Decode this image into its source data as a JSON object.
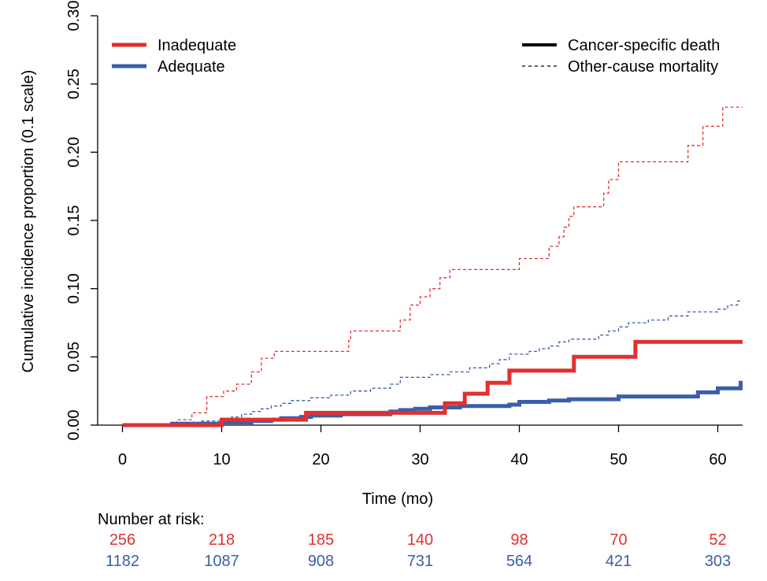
{
  "chart_data": {
    "type": "line",
    "xlabel": "Time (mo)",
    "ylabel": "Cumulative incidence proportion (0.1 scale)",
    "xlim": [
      -2.5,
      62.5
    ],
    "ylim": [
      0,
      0.3
    ],
    "x_ticks": [
      0,
      10,
      20,
      30,
      40,
      50,
      60
    ],
    "y_ticks": [
      0.0,
      0.05,
      0.1,
      0.15,
      0.2,
      0.25,
      0.3
    ],
    "y_tick_labels": [
      "0.00",
      "0.05",
      "0.10",
      "0.15",
      "0.20",
      "0.25",
      "0.30"
    ],
    "legend_groups": [
      {
        "label": "Inadequate",
        "color": "#e03030"
      },
      {
        "label": "Adequate",
        "color": "#3a5fa8"
      }
    ],
    "legend_types": [
      {
        "label": "Cancer-specific death",
        "style": "solid"
      },
      {
        "label": "Other-cause mortality",
        "style": "dashed"
      }
    ],
    "series": [
      {
        "group": "Inadequate",
        "type_label": "Cancer-specific death",
        "color": "#e03030",
        "style": "solid",
        "step_points": [
          [
            0,
            0
          ],
          [
            10,
            0.004
          ],
          [
            18.5,
            0.009
          ],
          [
            32.5,
            0.016
          ],
          [
            34.5,
            0.023
          ],
          [
            36.8,
            0.031
          ],
          [
            39,
            0.04
          ],
          [
            45.5,
            0.05
          ],
          [
            51.7,
            0.061
          ],
          [
            62.5,
            0.061
          ]
        ]
      },
      {
        "group": "Adequate",
        "type_label": "Cancer-specific death",
        "color": "#3a5fa8",
        "style": "solid",
        "step_points": [
          [
            0,
            0
          ],
          [
            5,
            0.001
          ],
          [
            10,
            0.002
          ],
          [
            13,
            0.003
          ],
          [
            15,
            0.004
          ],
          [
            16,
            0.005
          ],
          [
            18,
            0.006
          ],
          [
            19,
            0.007
          ],
          [
            22,
            0.008
          ],
          [
            27,
            0.01
          ],
          [
            28,
            0.011
          ],
          [
            29.5,
            0.012
          ],
          [
            31,
            0.013
          ],
          [
            34,
            0.014
          ],
          [
            39,
            0.015
          ],
          [
            40,
            0.017
          ],
          [
            43,
            0.018
          ],
          [
            45,
            0.019
          ],
          [
            50,
            0.021
          ],
          [
            58,
            0.024
          ],
          [
            60,
            0.027
          ],
          [
            62.3,
            0.031
          ],
          [
            62.5,
            0.031
          ]
        ]
      },
      {
        "group": "Inadequate",
        "type_label": "Other-cause mortality",
        "color": "#e03030",
        "style": "dashed",
        "step_points": [
          [
            0,
            0
          ],
          [
            5.5,
            0.004
          ],
          [
            7,
            0.009
          ],
          [
            8.5,
            0.021
          ],
          [
            10.2,
            0.025
          ],
          [
            11.5,
            0.03
          ],
          [
            13,
            0.039
          ],
          [
            14,
            0.049
          ],
          [
            15.3,
            0.054
          ],
          [
            22.8,
            0.062
          ],
          [
            23,
            0.069
          ],
          [
            28,
            0.077
          ],
          [
            29,
            0.088
          ],
          [
            30,
            0.094
          ],
          [
            31,
            0.1
          ],
          [
            32,
            0.108
          ],
          [
            33,
            0.114
          ],
          [
            40,
            0.122
          ],
          [
            43,
            0.131
          ],
          [
            44,
            0.138
          ],
          [
            44.5,
            0.145
          ],
          [
            45,
            0.153
          ],
          [
            45.5,
            0.16
          ],
          [
            48.5,
            0.17
          ],
          [
            49,
            0.18
          ],
          [
            50,
            0.193
          ],
          [
            57,
            0.205
          ],
          [
            58.5,
            0.219
          ],
          [
            60.5,
            0.233
          ],
          [
            62.5,
            0.233
          ]
        ]
      },
      {
        "group": "Adequate",
        "type_label": "Other-cause mortality",
        "color": "#3a5fa8",
        "style": "dashed",
        "step_points": [
          [
            0,
            0
          ],
          [
            5,
            0.002
          ],
          [
            8,
            0.003
          ],
          [
            10,
            0.005
          ],
          [
            11,
            0.006
          ],
          [
            12,
            0.008
          ],
          [
            13,
            0.01
          ],
          [
            14,
            0.012
          ],
          [
            15,
            0.014
          ],
          [
            16,
            0.016
          ],
          [
            17,
            0.018
          ],
          [
            19,
            0.02
          ],
          [
            21,
            0.022
          ],
          [
            23,
            0.025
          ],
          [
            25,
            0.027
          ],
          [
            27,
            0.03
          ],
          [
            28,
            0.035
          ],
          [
            31,
            0.037
          ],
          [
            33,
            0.039
          ],
          [
            35,
            0.042
          ],
          [
            37,
            0.045
          ],
          [
            38,
            0.048
          ],
          [
            39,
            0.052
          ],
          [
            41,
            0.054
          ],
          [
            42,
            0.056
          ],
          [
            43,
            0.058
          ],
          [
            44,
            0.061
          ],
          [
            45,
            0.063
          ],
          [
            48,
            0.066
          ],
          [
            49,
            0.069
          ],
          [
            50,
            0.072
          ],
          [
            51,
            0.075
          ],
          [
            53,
            0.077
          ],
          [
            55,
            0.08
          ],
          [
            57,
            0.083
          ],
          [
            60,
            0.085
          ],
          [
            61,
            0.088
          ],
          [
            62,
            0.091
          ],
          [
            62.5,
            0.091
          ]
        ]
      }
    ],
    "risk_table": {
      "title": "Number at risk:",
      "times": [
        0,
        10,
        20,
        30,
        40,
        50,
        60
      ],
      "rows": [
        {
          "group": "Inadequate",
          "color": "#e03030",
          "values": [
            "256",
            "218",
            "185",
            "140",
            "98",
            "70",
            "52"
          ]
        },
        {
          "group": "Adequate",
          "color": "#3a5fa8",
          "values": [
            "1182",
            "1087",
            "908",
            "731",
            "564",
            "421",
            "303"
          ]
        }
      ]
    }
  }
}
